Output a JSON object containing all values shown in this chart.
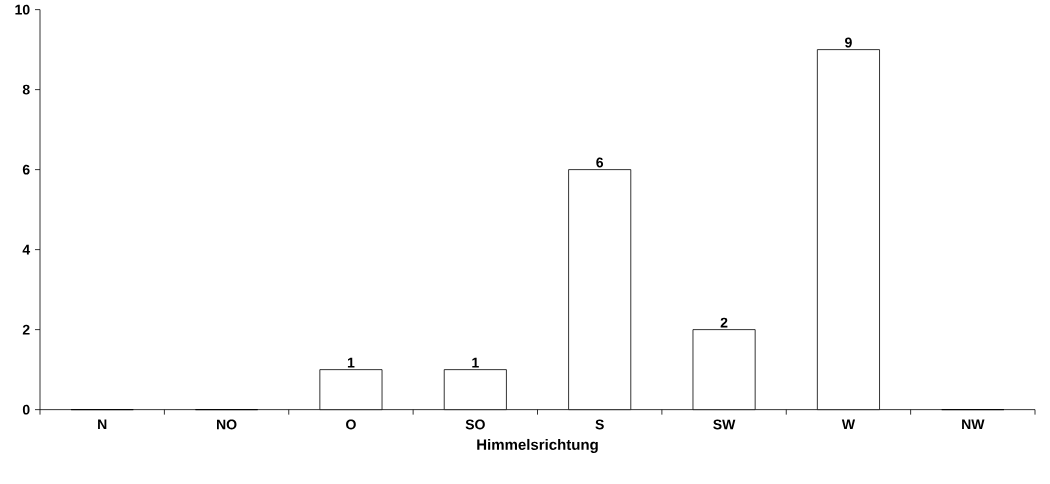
{
  "chart_data": {
    "type": "bar",
    "xlabel": "Himmelsrichtung",
    "categories": [
      "N",
      "NO",
      "O",
      "SO",
      "S",
      "SW",
      "W",
      "NW"
    ],
    "values": [
      0,
      0,
      1,
      1,
      6,
      2,
      9,
      0
    ],
    "value_labels": [
      null,
      null,
      "1",
      "1",
      "6",
      "2",
      "9",
      null
    ],
    "color": "#ffffff",
    "ylim": [
      0,
      10
    ],
    "yticks": [
      0,
      2,
      4,
      6,
      8,
      10
    ]
  }
}
